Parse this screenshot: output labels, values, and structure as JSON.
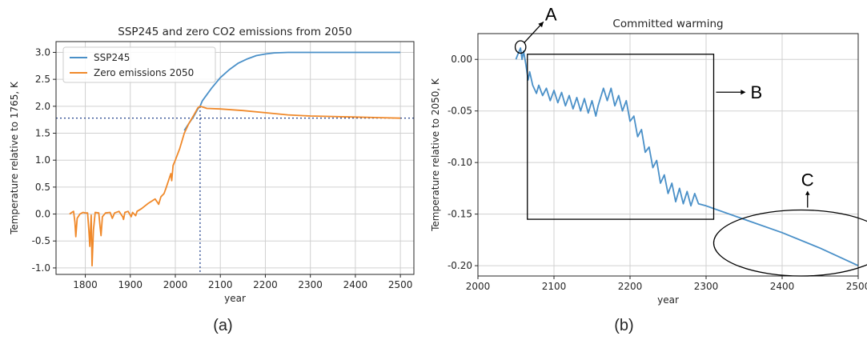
{
  "chart_data": [
    {
      "type": "line",
      "panel_label": "(a)",
      "title": "SSP245 and zero CO2 emissions from 2050",
      "xlabel": "year",
      "ylabel": "Temperature relative to 1765, K",
      "xlim": [
        1735,
        2530
      ],
      "ylim": [
        -1.12,
        3.2
      ],
      "xticks": [
        1800,
        1900,
        2000,
        2100,
        2200,
        2300,
        2400,
        2500
      ],
      "yticks": [
        -1.0,
        -0.5,
        0.0,
        0.5,
        1.0,
        1.5,
        2.0,
        2.5,
        3.0
      ],
      "grid": true,
      "legend_position": "upper-left",
      "series": [
        {
          "name": "SSP245",
          "color": "#4a90c8",
          "points": [
            [
              2020,
              1.55
            ],
            [
              2030,
              1.68
            ],
            [
              2040,
              1.8
            ],
            [
              2050,
              1.95
            ],
            [
              2055,
              2.0
            ],
            [
              2060,
              2.1
            ],
            [
              2080,
              2.33
            ],
            [
              2100,
              2.53
            ],
            [
              2120,
              2.68
            ],
            [
              2140,
              2.8
            ],
            [
              2160,
              2.88
            ],
            [
              2180,
              2.94
            ],
            [
              2200,
              2.97
            ],
            [
              2220,
              2.99
            ],
            [
              2250,
              3.0
            ],
            [
              2300,
              3.0
            ],
            [
              2400,
              3.0
            ],
            [
              2500,
              3.0
            ]
          ]
        },
        {
          "name": "Zero emissions 2050",
          "color": "#f0892a",
          "points": [
            [
              1765,
              0.0
            ],
            [
              1770,
              0.03
            ],
            [
              1774,
              0.05
            ],
            [
              1777,
              -0.15
            ],
            [
              1779,
              -0.42
            ],
            [
              1782,
              -0.08
            ],
            [
              1788,
              0.0
            ],
            [
              1795,
              0.03
            ],
            [
              1800,
              0.02
            ],
            [
              1805,
              0.02
            ],
            [
              1808,
              -0.3
            ],
            [
              1810,
              -0.6
            ],
            [
              1813,
              -0.02
            ],
            [
              1815,
              -0.96
            ],
            [
              1818,
              -0.3
            ],
            [
              1822,
              0.03
            ],
            [
              1830,
              0.02
            ],
            [
              1833,
              -0.25
            ],
            [
              1835,
              -0.4
            ],
            [
              1838,
              -0.05
            ],
            [
              1845,
              0.02
            ],
            [
              1855,
              0.03
            ],
            [
              1860,
              -0.08
            ],
            [
              1865,
              0.02
            ],
            [
              1875,
              0.05
            ],
            [
              1883,
              -0.05
            ],
            [
              1885,
              -0.1
            ],
            [
              1888,
              0.03
            ],
            [
              1895,
              0.05
            ],
            [
              1902,
              -0.05
            ],
            [
              1905,
              0.03
            ],
            [
              1912,
              -0.03
            ],
            [
              1915,
              0.05
            ],
            [
              1925,
              0.1
            ],
            [
              1940,
              0.2
            ],
            [
              1955,
              0.28
            ],
            [
              1960,
              0.22
            ],
            [
              1963,
              0.18
            ],
            [
              1968,
              0.32
            ],
            [
              1975,
              0.38
            ],
            [
              1980,
              0.5
            ],
            [
              1990,
              0.75
            ],
            [
              1992,
              0.62
            ],
            [
              1995,
              0.9
            ],
            [
              2000,
              1.0
            ],
            [
              2010,
              1.22
            ],
            [
              2020,
              1.5
            ],
            [
              2030,
              1.68
            ],
            [
              2040,
              1.82
            ],
            [
              2050,
              1.97
            ],
            [
              2055,
              2.0
            ],
            [
              2070,
              1.96
            ],
            [
              2100,
              1.95
            ],
            [
              2150,
              1.92
            ],
            [
              2200,
              1.88
            ],
            [
              2250,
              1.84
            ],
            [
              2300,
              1.82
            ],
            [
              2350,
              1.81
            ],
            [
              2400,
              1.8
            ],
            [
              2450,
              1.79
            ],
            [
              2500,
              1.78
            ]
          ]
        }
      ],
      "guides": {
        "horizontal_y": 1.78,
        "vertical_x": 2055,
        "color": "#1f3f8a"
      }
    },
    {
      "type": "line",
      "panel_label": "(b)",
      "title": "Committed warming",
      "xlabel": "year",
      "ylabel": "Temperature relative to 2050, K",
      "xlim": [
        2000,
        2500
      ],
      "ylim": [
        -0.21,
        0.025
      ],
      "xticks": [
        2000,
        2100,
        2200,
        2300,
        2400,
        2500
      ],
      "yticks": [
        0.0,
        -0.05,
        -0.1,
        -0.15,
        -0.2
      ],
      "grid": true,
      "series": [
        {
          "color": "#4a90c8",
          "points": [
            [
              2050,
              0.0
            ],
            [
              2053,
              0.006
            ],
            [
              2056,
              0.011
            ],
            [
              2058,
              0.0
            ],
            [
              2060,
              0.008
            ],
            [
              2063,
              -0.005
            ],
            [
              2066,
              -0.02
            ],
            [
              2068,
              -0.012
            ],
            [
              2072,
              -0.025
            ],
            [
              2077,
              -0.033
            ],
            [
              2080,
              -0.025
            ],
            [
              2085,
              -0.035
            ],
            [
              2090,
              -0.028
            ],
            [
              2095,
              -0.04
            ],
            [
              2100,
              -0.03
            ],
            [
              2105,
              -0.042
            ],
            [
              2110,
              -0.032
            ],
            [
              2115,
              -0.045
            ],
            [
              2120,
              -0.035
            ],
            [
              2125,
              -0.048
            ],
            [
              2130,
              -0.037
            ],
            [
              2135,
              -0.05
            ],
            [
              2140,
              -0.038
            ],
            [
              2145,
              -0.052
            ],
            [
              2150,
              -0.04
            ],
            [
              2155,
              -0.055
            ],
            [
              2158,
              -0.045
            ],
            [
              2165,
              -0.028
            ],
            [
              2170,
              -0.04
            ],
            [
              2175,
              -0.028
            ],
            [
              2180,
              -0.045
            ],
            [
              2185,
              -0.035
            ],
            [
              2190,
              -0.05
            ],
            [
              2195,
              -0.04
            ],
            [
              2200,
              -0.06
            ],
            [
              2205,
              -0.055
            ],
            [
              2210,
              -0.075
            ],
            [
              2215,
              -0.068
            ],
            [
              2220,
              -0.09
            ],
            [
              2225,
              -0.085
            ],
            [
              2230,
              -0.105
            ],
            [
              2235,
              -0.098
            ],
            [
              2240,
              -0.12
            ],
            [
              2245,
              -0.112
            ],
            [
              2250,
              -0.13
            ],
            [
              2255,
              -0.12
            ],
            [
              2260,
              -0.138
            ],
            [
              2265,
              -0.125
            ],
            [
              2270,
              -0.14
            ],
            [
              2275,
              -0.128
            ],
            [
              2280,
              -0.142
            ],
            [
              2285,
              -0.13
            ],
            [
              2290,
              -0.14
            ],
            [
              2300,
              -0.142
            ],
            [
              2350,
              -0.155
            ],
            [
              2400,
              -0.168
            ],
            [
              2450,
              -0.183
            ],
            [
              2500,
              -0.2
            ]
          ]
        }
      ],
      "annotations": {
        "A": "A",
        "B": "B",
        "C": "C",
        "box_B": {
          "x": [
            2065,
            2310
          ],
          "y": [
            -0.155,
            0.005
          ]
        },
        "ellipse_A": {
          "cx": 2056,
          "cy": 0.012,
          "rx_years": 7,
          "ry_k": 0.006
        },
        "ellipse_C": {
          "cx": 2425,
          "cy": -0.178,
          "rx_years": 115,
          "ry_k": 0.032
        }
      }
    }
  ]
}
